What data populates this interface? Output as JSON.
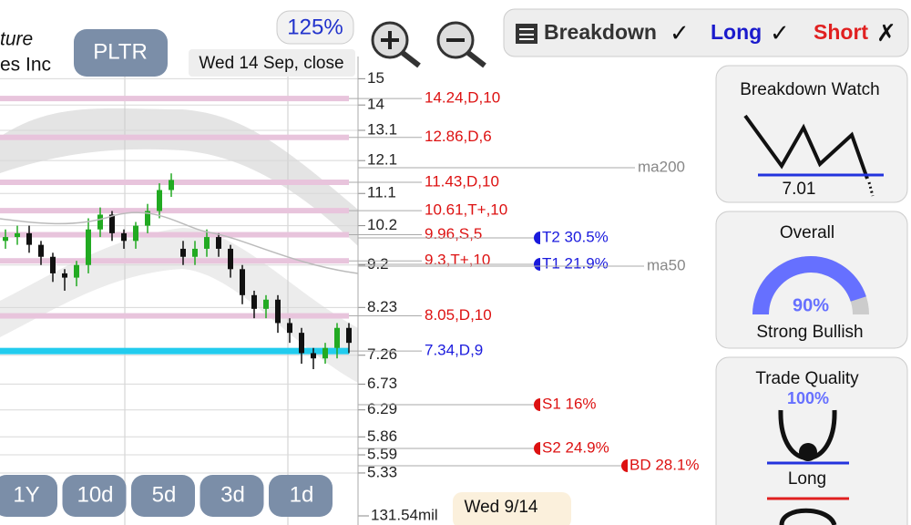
{
  "header": {
    "company_fragment_1": "ture",
    "company_fragment_2": "es Inc",
    "ticker": "PLTR",
    "zoom": "125%",
    "date": "Wed 14 Sep, close"
  },
  "toggles": {
    "breakdown": "Breakdown",
    "breakdown_state": "✓",
    "long": "Long",
    "long_state": "✓",
    "short": "Short",
    "short_state": "✗"
  },
  "chart_data": {
    "type": "candlestick",
    "log_scale": true,
    "ylim": [
      4.65,
      15.9
    ],
    "yticks": [
      15,
      14,
      13.1,
      12.1,
      11.1,
      10.2,
      9.2,
      8.23,
      7.26,
      6.73,
      6.29,
      5.86,
      5.59,
      5.33
    ],
    "open": [
      9.8,
      9.9,
      10.0,
      9.7,
      9.4,
      9.0,
      8.9,
      9.2,
      10.1,
      10.5,
      10.0,
      9.8,
      10.2,
      10.6,
      11.2,
      9.6,
      9.4,
      9.6,
      9.9,
      9.6,
      9.1,
      8.5,
      8.2,
      8.4,
      7.9,
      7.7,
      7.3,
      7.2,
      7.4,
      7.8
    ],
    "high": [
      10.1,
      10.2,
      10.2,
      9.8,
      9.5,
      9.1,
      9.3,
      10.4,
      10.7,
      10.6,
      10.1,
      10.3,
      10.8,
      11.4,
      11.7,
      9.8,
      9.8,
      10.1,
      10.0,
      9.7,
      9.2,
      8.6,
      8.5,
      8.5,
      8.0,
      7.8,
      7.4,
      7.5,
      7.9,
      7.9
    ],
    "low": [
      9.6,
      9.7,
      9.5,
      9.2,
      8.8,
      8.6,
      8.7,
      9.0,
      9.9,
      9.8,
      9.6,
      9.6,
      10.0,
      10.4,
      11.0,
      9.2,
      9.2,
      9.4,
      9.4,
      8.9,
      8.3,
      8.0,
      8.0,
      7.7,
      7.5,
      7.1,
      7.0,
      7.1,
      7.2,
      7.3
    ],
    "close": [
      9.9,
      10.0,
      9.7,
      9.4,
      9.0,
      8.9,
      9.2,
      10.1,
      10.5,
      10.0,
      9.8,
      10.2,
      10.6,
      11.2,
      11.5,
      9.4,
      9.6,
      9.9,
      9.6,
      9.1,
      8.5,
      8.2,
      8.4,
      7.9,
      7.7,
      7.3,
      7.2,
      7.4,
      7.8,
      7.5
    ],
    "up_color": "#22aa22",
    "down_color": "#111111",
    "levels": [
      {
        "label": "14.24,D,10",
        "price": 14.24,
        "color": "#dd1111"
      },
      {
        "label": "12.86,D,6",
        "price": 12.86,
        "color": "#dd1111"
      },
      {
        "label": "11.43,D,10",
        "price": 11.43,
        "color": "#dd1111"
      },
      {
        "label": "10.61,T+,10",
        "price": 10.61,
        "color": "#dd1111"
      },
      {
        "label": "9.96,S,5",
        "price": 9.96,
        "color": "#dd1111"
      },
      {
        "label": "9.3,T+,10",
        "price": 9.3,
        "color": "#dd1111"
      },
      {
        "label": "8.05,D,10",
        "price": 8.05,
        "color": "#dd1111"
      },
      {
        "label": "7.34,D,9",
        "price": 7.34,
        "color": "#1a1add"
      }
    ],
    "ma_labels": [
      "ma200",
      "ma50"
    ],
    "markers": [
      {
        "label": "T2 30.5%",
        "color": "#1a1add"
      },
      {
        "label": "T1 21.9%",
        "color": "#1a1add"
      },
      {
        "label": "S1 16%",
        "color": "#dd1111"
      },
      {
        "label": "S2 24.9%",
        "color": "#dd1111"
      },
      {
        "label": "BD 28.1%",
        "color": "#dd1111"
      }
    ],
    "volume_label": "131.54mil"
  },
  "periods": [
    "1Y",
    "10d",
    "5d",
    "3d",
    "1d"
  ],
  "date_tag": "Wed 9/14",
  "panels": {
    "breakdown_watch": {
      "title": "Breakdown Watch",
      "value": 7.01
    },
    "overall": {
      "title": "Overall",
      "score_label": "90%",
      "rating": "Strong Bullish"
    },
    "trade_quality": {
      "title": "Trade Quality",
      "score_label": "100%",
      "direction": "Long"
    }
  }
}
